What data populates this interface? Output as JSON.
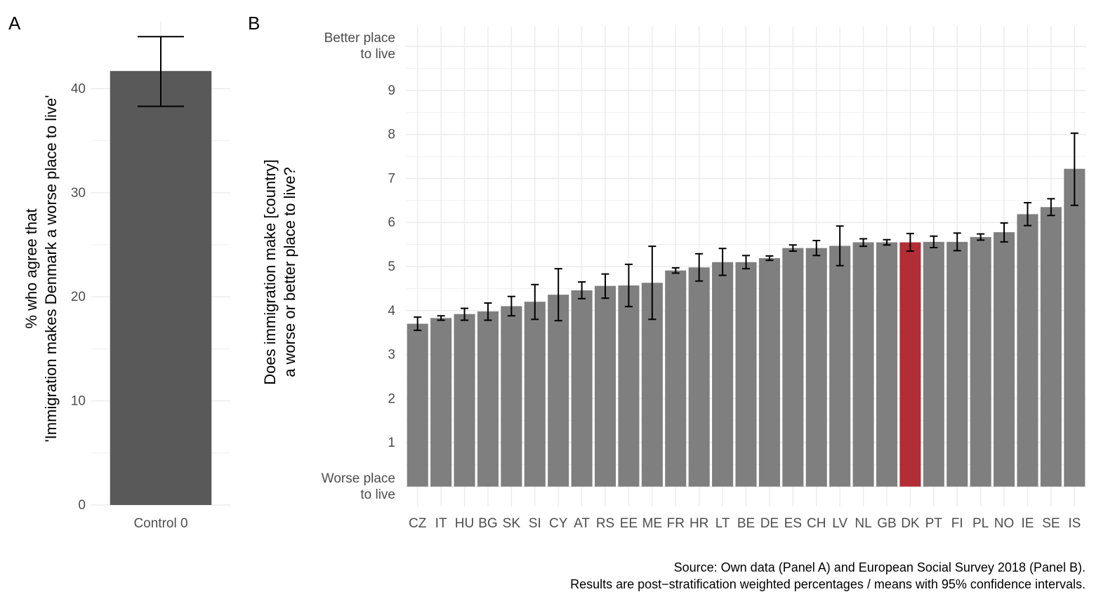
{
  "panels": {
    "a": {
      "letter": "A"
    },
    "b": {
      "letter": "B"
    }
  },
  "colors": {
    "panel_a_bar": "#595959",
    "bar": "#7f7f7f",
    "highlight": "#b22d35",
    "grid": "#ebebeb",
    "errorbar": "#000000"
  },
  "chart_data": [
    {
      "type": "bar",
      "panel": "A",
      "categories": [
        "Control 0"
      ],
      "values": [
        41.7
      ],
      "ci_low": [
        38.3
      ],
      "ci_high": [
        45.0
      ],
      "ylabel_lines": [
        "% who agree that",
        "'Immigration makes Denmark a worse place to live'"
      ],
      "xlabel": "",
      "ylim": [
        0,
        46.5
      ],
      "yticks": [
        0,
        10,
        20,
        30,
        40
      ],
      "grid": true
    },
    {
      "type": "bar",
      "panel": "B",
      "categories": [
        "CZ",
        "IT",
        "HU",
        "BG",
        "SK",
        "SI",
        "CY",
        "AT",
        "RS",
        "EE",
        "ME",
        "FR",
        "HR",
        "LT",
        "BE",
        "DE",
        "ES",
        "CH",
        "LV",
        "NL",
        "GB",
        "DK",
        "PT",
        "FI",
        "PL",
        "NO",
        "IE",
        "SE",
        "IS"
      ],
      "values": [
        3.7,
        3.83,
        3.92,
        3.98,
        4.1,
        4.2,
        4.36,
        4.46,
        4.56,
        4.57,
        4.63,
        4.91,
        4.98,
        5.1,
        5.1,
        5.19,
        5.42,
        5.42,
        5.47,
        5.55,
        5.55,
        5.55,
        5.56,
        5.56,
        5.67,
        5.78,
        6.19,
        6.35,
        7.22
      ],
      "ci_low": [
        3.55,
        3.78,
        3.78,
        3.78,
        3.88,
        3.8,
        3.77,
        4.27,
        4.28,
        4.09,
        3.8,
        4.85,
        4.67,
        4.8,
        4.95,
        5.14,
        5.35,
        5.25,
        5.02,
        5.46,
        5.49,
        5.35,
        5.43,
        5.36,
        5.6,
        5.56,
        5.93,
        6.16,
        6.39
      ],
      "ci_high": [
        3.85,
        3.88,
        4.05,
        4.17,
        4.32,
        4.59,
        4.95,
        4.65,
        4.83,
        5.05,
        5.46,
        4.97,
        5.29,
        5.41,
        5.25,
        5.24,
        5.49,
        5.59,
        5.92,
        5.63,
        5.61,
        5.75,
        5.69,
        5.76,
        5.74,
        5.99,
        6.45,
        6.54,
        8.03
      ],
      "highlight": "DK",
      "ylabel_lines": [
        "Does immigration make [country]",
        "a worse or better place to live?"
      ],
      "xlabel": "",
      "ylim": [
        -0.45,
        10.45
      ],
      "yticks": [
        {
          "value": 0,
          "label": "Worse place to live"
        },
        {
          "value": 1,
          "label": "1"
        },
        {
          "value": 2,
          "label": "2"
        },
        {
          "value": 3,
          "label": "3"
        },
        {
          "value": 4,
          "label": "4"
        },
        {
          "value": 5,
          "label": "5"
        },
        {
          "value": 6,
          "label": "6"
        },
        {
          "value": 7,
          "label": "7"
        },
        {
          "value": 8,
          "label": "8"
        },
        {
          "value": 9,
          "label": "9"
        },
        {
          "value": 10,
          "label": "Better place to live"
        }
      ],
      "grid": true
    }
  ],
  "caption": {
    "line1": "Source: Own data (Panel A) and European Social Survey 2018 (Panel B).",
    "line2": "Results are post−stratification weighted percentages / means with 95% confidence intervals."
  }
}
